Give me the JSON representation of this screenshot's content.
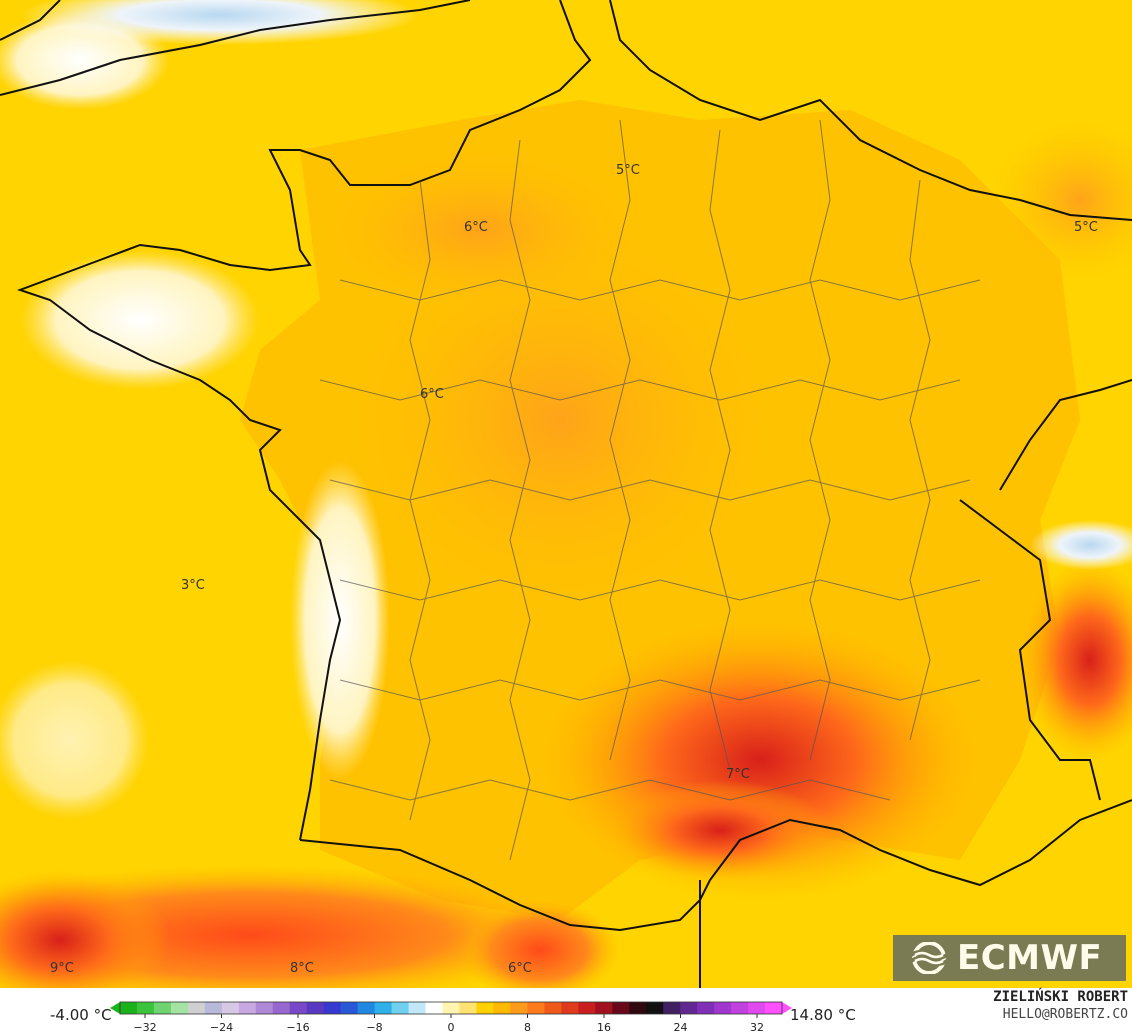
{
  "map": {
    "temperature_labels": [
      {
        "text": "5°C"
      },
      {
        "text": "6°C"
      },
      {
        "text": "5°C"
      },
      {
        "text": "6°C"
      },
      {
        "text": "3°C"
      },
      {
        "text": "7°C"
      },
      {
        "text": "9°C"
      },
      {
        "text": "8°C"
      },
      {
        "text": "6°C"
      }
    ]
  },
  "logo": {
    "text": "ECMWF"
  },
  "scale": {
    "min_label": "-4.00 °C",
    "max_label": "14.80 °C",
    "ticks": [
      "−32",
      "−24",
      "−16",
      "−8",
      "0",
      "8",
      "16",
      "24",
      "32"
    ],
    "colors": [
      "#1bb31b",
      "#3cc33c",
      "#6fd36f",
      "#a3e3a3",
      "#d0d0d0",
      "#b8b8d8",
      "#d8c8e8",
      "#c8a8e0",
      "#b088d8",
      "#9868d0",
      "#7848c8",
      "#5838c0",
      "#3838d0",
      "#2858d8",
      "#2088e0",
      "#30b0e8",
      "#70d0f0",
      "#c0e8f8",
      "#ffffff",
      "#fff4b0",
      "#ffe270",
      "#ffd000",
      "#ffb800",
      "#ff9a1a",
      "#ff7a1a",
      "#ef5a1a",
      "#df3a1a",
      "#c81e1e",
      "#a0101e",
      "#680818",
      "#300810",
      "#101010",
      "#402060",
      "#602890",
      "#8030b8",
      "#a038d0",
      "#c040e0",
      "#e048f0",
      "#ff50ff"
    ]
  },
  "credit": {
    "name": "ZIELIŃSKI ROBERT",
    "email": "HELLO@ROBERTZ.CO"
  }
}
